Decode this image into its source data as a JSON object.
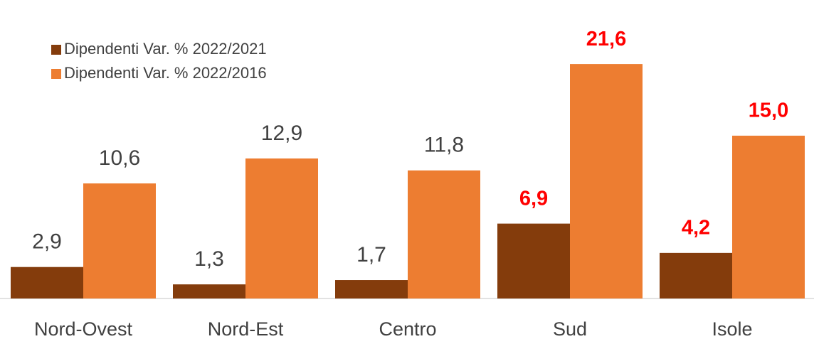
{
  "chart_data": {
    "type": "bar",
    "categories": [
      "Nord-Ovest",
      "Nord-Est",
      "Centro",
      "Sud",
      "Isole"
    ],
    "series": [
      {
        "name": "Dipendenti Var. % 2022/2021",
        "color": "#843c0c",
        "values": [
          2.9,
          1.3,
          1.7,
          6.9,
          4.2
        ],
        "value_labels": [
          "2,9",
          "1,3",
          "1,7",
          "6,9",
          "4,2"
        ],
        "label_colors": [
          "#404040",
          "#404040",
          "#404040",
          "#ff0000",
          "#ff0000"
        ]
      },
      {
        "name": "Dipendenti Var. % 2022/2016",
        "color": "#ed7d31",
        "values": [
          10.6,
          12.9,
          11.8,
          21.6,
          15.0
        ],
        "value_labels": [
          "10,6",
          "12,9",
          "11,8",
          "21,6",
          "15,0"
        ],
        "label_colors": [
          "#404040",
          "#404040",
          "#404040",
          "#ff0000",
          "#ff0000"
        ]
      }
    ],
    "ylim": [
      0,
      27.5
    ],
    "legend": "top-left"
  }
}
